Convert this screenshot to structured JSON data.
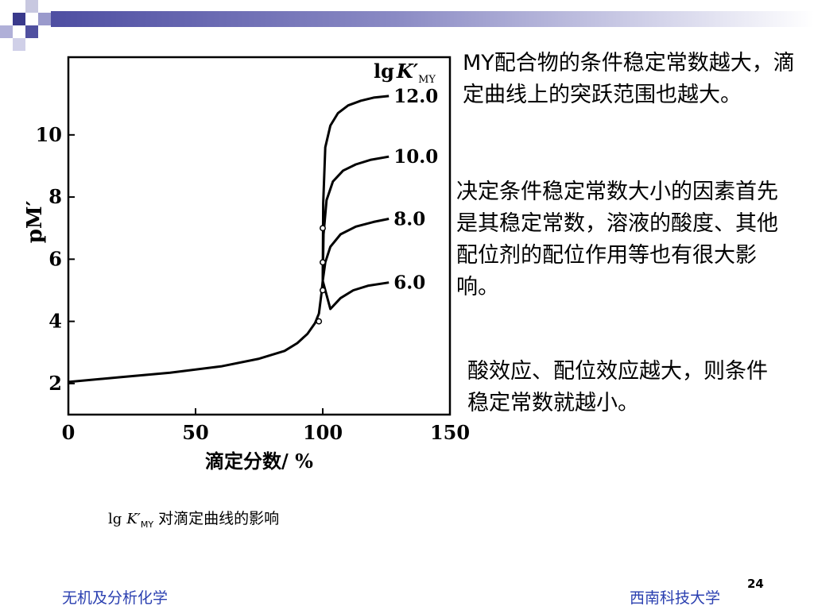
{
  "chart_data": {
    "type": "line",
    "xlabel": "滴定分数/ %",
    "ylabel": "pM′",
    "xlim": [
      0,
      150
    ],
    "ylim": [
      1,
      12.5
    ],
    "x_ticks": [
      0,
      50,
      100,
      150
    ],
    "y_ticks": [
      2,
      4,
      6,
      8,
      10
    ],
    "x_tick_labels": [
      "0",
      "50",
      "100",
      "150"
    ],
    "y_tick_labels": [
      "2",
      "4",
      "6",
      "8",
      "10"
    ],
    "legend_title": "lg K′MY",
    "common_curve": {
      "x": [
        0,
        20,
        40,
        60,
        75,
        85,
        90,
        94,
        97,
        98.5,
        99.5,
        100
      ],
      "y": [
        2.05,
        2.2,
        2.35,
        2.55,
        2.8,
        3.05,
        3.3,
        3.6,
        3.95,
        4.25,
        4.9,
        5.3
      ]
    },
    "series": [
      {
        "name": "12.0",
        "label": "12.0",
        "x": [
          100,
          100.2,
          101,
          103,
          106,
          110,
          115,
          120,
          126
        ],
        "y": [
          5.3,
          7.8,
          9.6,
          10.3,
          10.7,
          10.95,
          11.1,
          11.2,
          11.25
        ]
      },
      {
        "name": "10.0",
        "label": "10.0",
        "x": [
          100,
          100.3,
          101.5,
          104,
          108,
          113,
          119,
          126
        ],
        "y": [
          5.3,
          6.8,
          7.9,
          8.5,
          8.85,
          9.05,
          9.2,
          9.3
        ]
      },
      {
        "name": "8.0",
        "label": "8.0",
        "x": [
          100,
          101,
          103,
          107,
          113,
          120,
          126
        ],
        "y": [
          5.3,
          5.9,
          6.4,
          6.8,
          7.05,
          7.2,
          7.3
        ]
      },
      {
        "name": "6.0",
        "label": "6.0",
        "x": [
          100,
          103,
          107,
          112,
          118,
          126
        ],
        "y": [
          5.3,
          4.4,
          4.75,
          5.0,
          5.15,
          5.25
        ]
      }
    ],
    "markers": {
      "x": [
        98.5,
        100,
        100,
        100
      ],
      "y": [
        4.0,
        5.0,
        5.9,
        7.0
      ]
    }
  },
  "caption": {
    "prefix": "lg",
    "symbol": "K′",
    "subscript": "MY",
    "text": "对滴定曲线的影响"
  },
  "paragraphs": [
    "MY配合物的条件稳定常数越大，滴定曲线上的突跃范围也越大。",
    "决定条件稳定常数大小的因素首先是其稳定常数，溶液的酸度、其他配位剂的配位作用等也有很大影响。",
    "酸效应、配位效应越大，则条件稳定常数就越小。"
  ],
  "footer": {
    "left": "无机及分析化学",
    "right": "西南科技大学",
    "page": "24"
  }
}
